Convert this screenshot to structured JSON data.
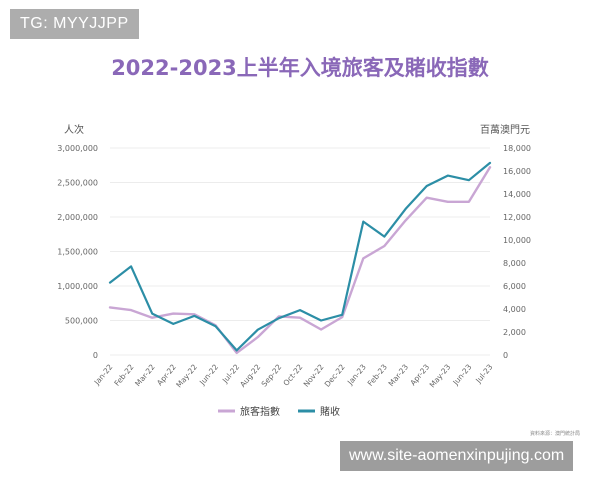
{
  "watermark_top": "TG: MYYJJPP",
  "watermark_bottom": "www.site-aomenxinpujing.com",
  "source_note": "資料來源：澳門統計局",
  "colors": {
    "visitors": "#c9a6d4",
    "gaming": "#2c8ea6",
    "title": "#8a68b8"
  },
  "chart_data": {
    "type": "line",
    "title": "2022-2023上半年入境旅客及賭收指數",
    "ylabel_left": "人次",
    "ylabel_right": "百萬澳門元",
    "categories": [
      "Jan-22",
      "Feb-22",
      "Mar-22",
      "Apr-22",
      "May-22",
      "Jun-22",
      "Jul-22",
      "Aug-22",
      "Sep-22",
      "Oct-22",
      "Nov-22",
      "Dec-22",
      "Jan-23",
      "Feb-23",
      "Mar-23",
      "Apr-23",
      "May-23",
      "Jun-23",
      "Jul-23"
    ],
    "ylim_left": [
      0,
      3000000
    ],
    "ylim_right": [
      0,
      18000
    ],
    "yticks_left": [
      "0",
      "500,000",
      "1,000,000",
      "1,500,000",
      "2,000,000",
      "2,500,000",
      "3,000,000"
    ],
    "yticks_right": [
      "0",
      "2,000",
      "4,000",
      "6,000",
      "8,000",
      "10,000",
      "12,000",
      "14,000",
      "16,000",
      "18,000"
    ],
    "series": [
      {
        "name": "旅客指數",
        "axis": "left",
        "values": [
          690000,
          650000,
          540000,
          600000,
          590000,
          430000,
          30000,
          260000,
          560000,
          540000,
          370000,
          550000,
          1400000,
          1580000,
          1950000,
          2280000,
          2220000,
          2220000,
          2720000
        ]
      },
      {
        "name": "賭收",
        "axis": "right",
        "values": [
          6300,
          7700,
          3600,
          2700,
          3400,
          2500,
          400,
          2200,
          3200,
          3900,
          3000,
          3500,
          11600,
          10300,
          12700,
          14700,
          15600,
          15200,
          16700
        ]
      }
    ],
    "grid": true,
    "legend": "bottom"
  }
}
